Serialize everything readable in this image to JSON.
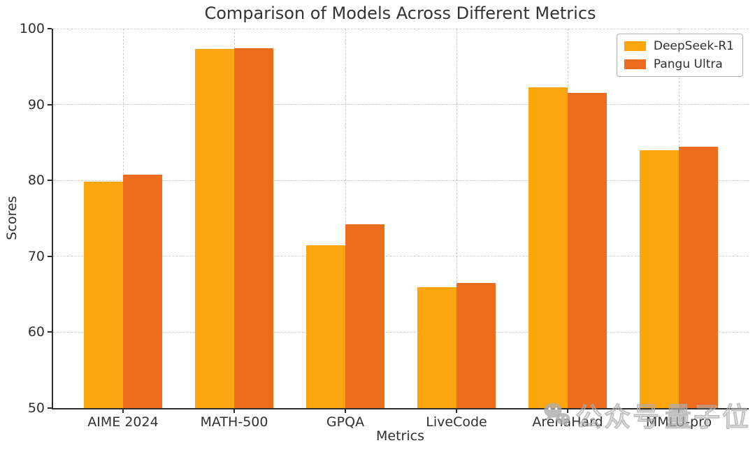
{
  "chart_data": {
    "type": "bar",
    "title": "Comparison of Models Across Different Metrics",
    "xlabel": "Metrics",
    "ylabel": "Scores",
    "categories": [
      "AIME 2024",
      "MATH-500",
      "GPQA",
      "LiveCode",
      "ArenaHard",
      "MMLU-pro"
    ],
    "series": [
      {
        "name": "DeepSeek-R1",
        "color": "#FCA50F",
        "values": [
          79.8,
          97.3,
          71.5,
          65.9,
          92.3,
          84.0
        ]
      },
      {
        "name": "Pangu Ultra",
        "color": "#EE6C1E",
        "values": [
          80.8,
          97.4,
          74.2,
          66.5,
          91.5,
          84.4
        ]
      }
    ],
    "ylim": [
      50,
      100
    ],
    "yticks": [
      50,
      60,
      70,
      80,
      90,
      100
    ],
    "grid": true,
    "grid_style": "dashed",
    "legend_position": "upper right"
  },
  "watermark": {
    "icon": "wechat-icon",
    "label_account": "公众号",
    "label_name": "量子位",
    "color": "#b0b0b0"
  }
}
